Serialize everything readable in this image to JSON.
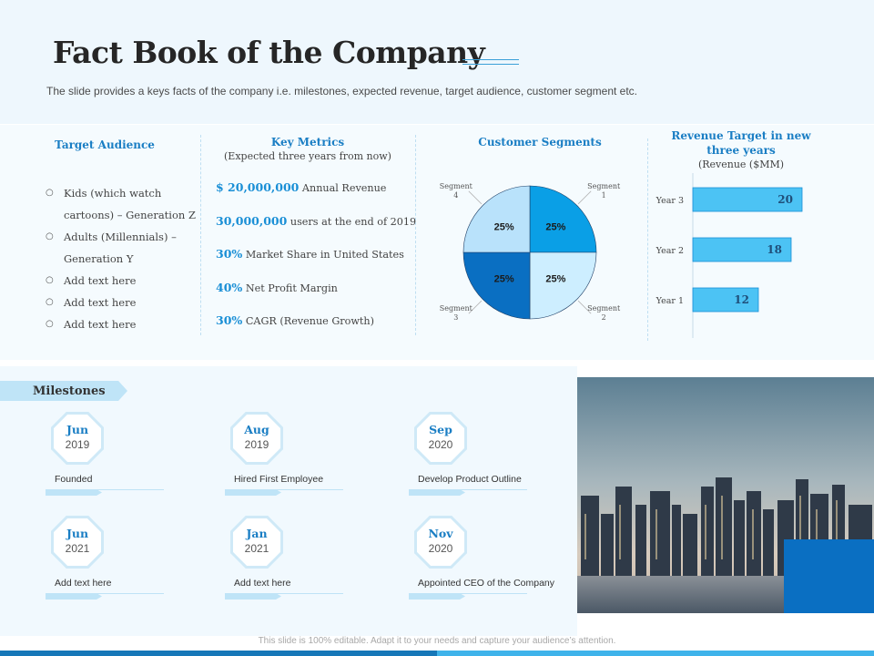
{
  "title": "Fact Book of the Company",
  "subtitle": "The slide provides  a keys facts of the company i.e. milestones, expected revenue,  target audience, customer segment etc.",
  "target_audience": {
    "title": "Target Audience",
    "items": [
      "Kids (which watch cartoons) – Generation  Z",
      "Adults (Millennials) – Generation  Y",
      "Add text here",
      "Add text here",
      "Add text here"
    ]
  },
  "key_metrics": {
    "title": "Key Metrics",
    "subtitle": "(Expected three years from now)",
    "items": [
      {
        "value": "$ 20,000,000",
        "label": "Annual Revenue"
      },
      {
        "value": "30,000,000",
        "label": "users at the end of 2019"
      },
      {
        "value": "30%",
        "label": "Market Share in United States"
      },
      {
        "value": "40%",
        "label": "Net Profit Margin"
      },
      {
        "value": "30%",
        "label": "CAGR (Revenue Growth)"
      }
    ]
  },
  "customer_segments": {
    "title": "Customer Segments"
  },
  "revenue_target": {
    "title_line1": "Revenue Target in new",
    "title_line2": "three years",
    "subtitle": "(Revenue ($MM)"
  },
  "milestones": {
    "label": "Milestones",
    "items": [
      {
        "month": "Jun",
        "year": "2019",
        "desc": "Founded"
      },
      {
        "month": "Aug",
        "year": "2019",
        "desc": "Hired First Employee"
      },
      {
        "month": "Sep",
        "year": "2020",
        "desc": "Develop Product Outline"
      },
      {
        "month": "Jun",
        "year": "2021",
        "desc": "Add text here"
      },
      {
        "month": "Jan",
        "year": "2021",
        "desc": "Add text here"
      },
      {
        "month": "Nov",
        "year": "2020",
        "desc": "Appointed CEO  of the Company"
      }
    ]
  },
  "footer": "This slide is 100% editable. Adapt it to your needs and capture your audience’s attention.",
  "colors": {
    "accent": "#1a7ec4",
    "bar_fill": "#4cc3f4",
    "pie": [
      "#0a9fe6",
      "#cdeeff",
      "#0a6fc2",
      "#b9e2fb"
    ]
  },
  "chart_data": [
    {
      "type": "pie",
      "title": "Customer Segments",
      "labels": [
        "Segment 1",
        "Segment 2",
        "Segment 3",
        "Segment 4"
      ],
      "values": [
        25,
        25,
        25,
        25
      ],
      "value_labels": [
        "25%",
        "25%",
        "25%",
        "25%"
      ],
      "legend": "none"
    },
    {
      "type": "bar",
      "orientation": "horizontal",
      "title": "Revenue Target in new three years",
      "subtitle": "(Revenue ($MM)",
      "categories": [
        "Year 1",
        "Year 2",
        "Year 3"
      ],
      "values": [
        12,
        18,
        20
      ],
      "xlim": [
        0,
        30
      ],
      "xticks": [
        "0",
        "10",
        "20",
        "30"
      ],
      "grid": false
    }
  ]
}
